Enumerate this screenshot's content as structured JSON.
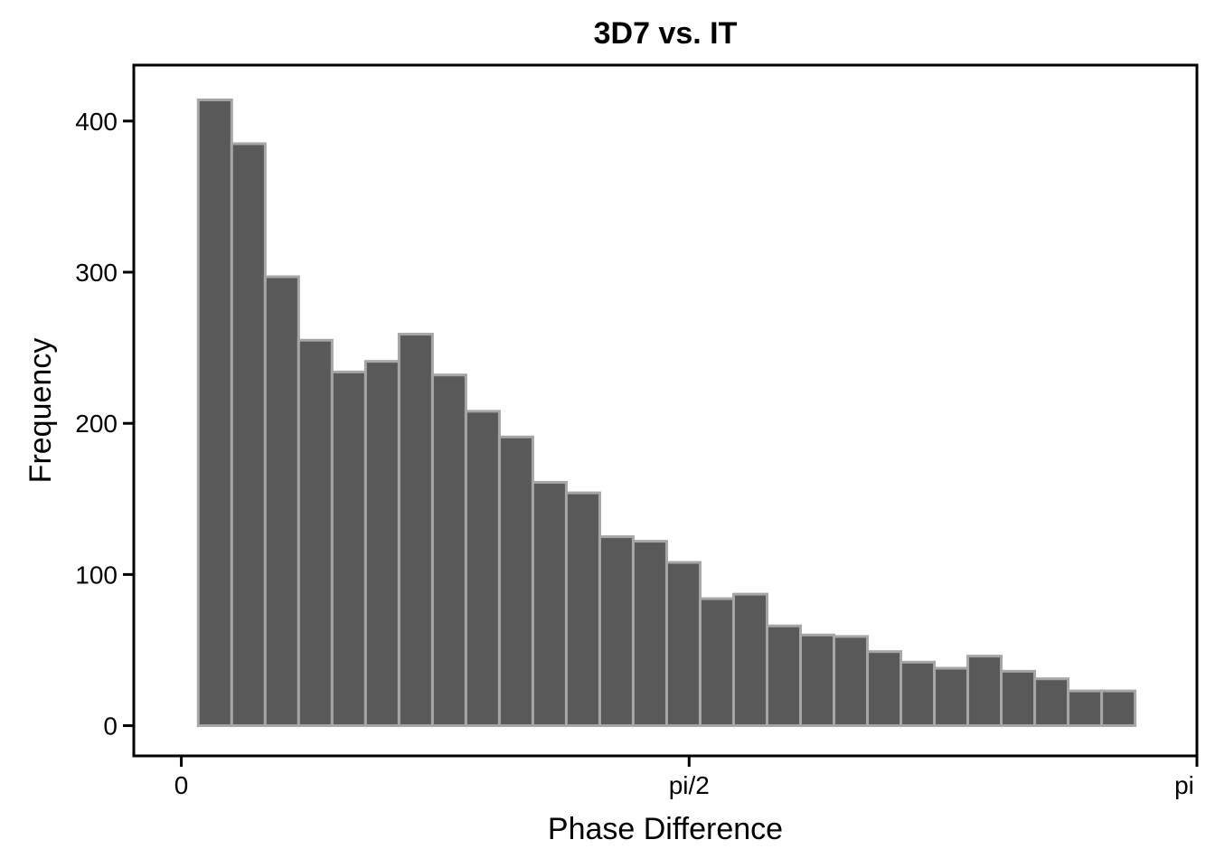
{
  "chart_data": {
    "type": "bar",
    "title": "3D7 vs. IT",
    "xlabel": "Phase Difference",
    "ylabel": "Frequency",
    "x_ticks": [
      {
        "value": 0,
        "label": "0"
      },
      {
        "value": 1.5707963,
        "label": "pi/2"
      },
      {
        "value": 3.1415927,
        "label": "pi"
      }
    ],
    "y_ticks": [
      {
        "value": 0,
        "label": "0"
      },
      {
        "value": 100,
        "label": "100"
      },
      {
        "value": 200,
        "label": "200"
      },
      {
        "value": 300,
        "label": "300"
      },
      {
        "value": 400,
        "label": "400"
      }
    ],
    "xlim": [
      -0.147,
      3.1416
    ],
    "ylim": [
      -20,
      437
    ],
    "bin_start": 0.0524,
    "bin_width": 0.1035,
    "values": [
      414,
      385,
      297,
      255,
      234,
      241,
      259,
      232,
      208,
      191,
      161,
      154,
      125,
      122,
      108,
      84,
      87,
      66,
      60,
      59,
      49,
      42,
      38,
      46,
      36,
      31,
      23,
      23
    ],
    "bar_fill": "#595959",
    "bar_stroke": "#a6a6a6",
    "grid": false,
    "legend": "none"
  }
}
